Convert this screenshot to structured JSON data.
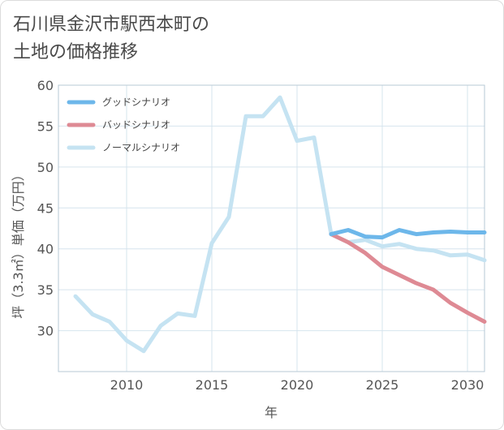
{
  "chart_data": {
    "type": "line",
    "title_lines": [
      "石川県金沢市駅西本町の",
      "土地の価格推移"
    ],
    "xlabel": "年",
    "ylabel": "坪（3.3㎡）単価（万円）",
    "xlim": [
      2006,
      2031
    ],
    "ylim": [
      25,
      60
    ],
    "xticks": [
      2010,
      2015,
      2020,
      2025,
      2030
    ],
    "yticks": [
      30,
      35,
      40,
      45,
      50,
      55,
      60
    ],
    "grid": true,
    "legend_position": "top-left",
    "series": [
      {
        "name": "グッドシナリオ",
        "color": "#6db7ea",
        "x": [
          2022,
          2023,
          2024,
          2025,
          2026,
          2027,
          2028,
          2029,
          2030,
          2031
        ],
        "y": [
          41.8,
          42.3,
          41.5,
          41.4,
          42.3,
          41.8,
          42.0,
          42.1,
          42.0,
          42.0
        ]
      },
      {
        "name": "バッドシナリオ",
        "color": "#de8a94",
        "x": [
          2022,
          2023,
          2024,
          2025,
          2026,
          2027,
          2028,
          2029,
          2030,
          2031
        ],
        "y": [
          41.8,
          40.8,
          39.5,
          37.8,
          36.8,
          35.8,
          35.0,
          33.4,
          32.2,
          31.1
        ]
      },
      {
        "name": "ノーマルシナリオ",
        "color": "#c5e3f2",
        "x": [
          2007,
          2008,
          2009,
          2010,
          2011,
          2012,
          2013,
          2014,
          2015,
          2016,
          2017,
          2018,
          2019,
          2020,
          2021,
          2022,
          2023,
          2024,
          2025,
          2026,
          2027,
          2028,
          2029,
          2030,
          2031
        ],
        "y": [
          34.2,
          32.0,
          31.1,
          28.8,
          27.5,
          30.6,
          32.1,
          31.8,
          40.7,
          43.9,
          56.2,
          56.2,
          58.5,
          53.2,
          53.6,
          41.8,
          40.8,
          41.1,
          40.3,
          40.6,
          40.0,
          39.8,
          39.2,
          39.3,
          38.6
        ]
      }
    ]
  }
}
